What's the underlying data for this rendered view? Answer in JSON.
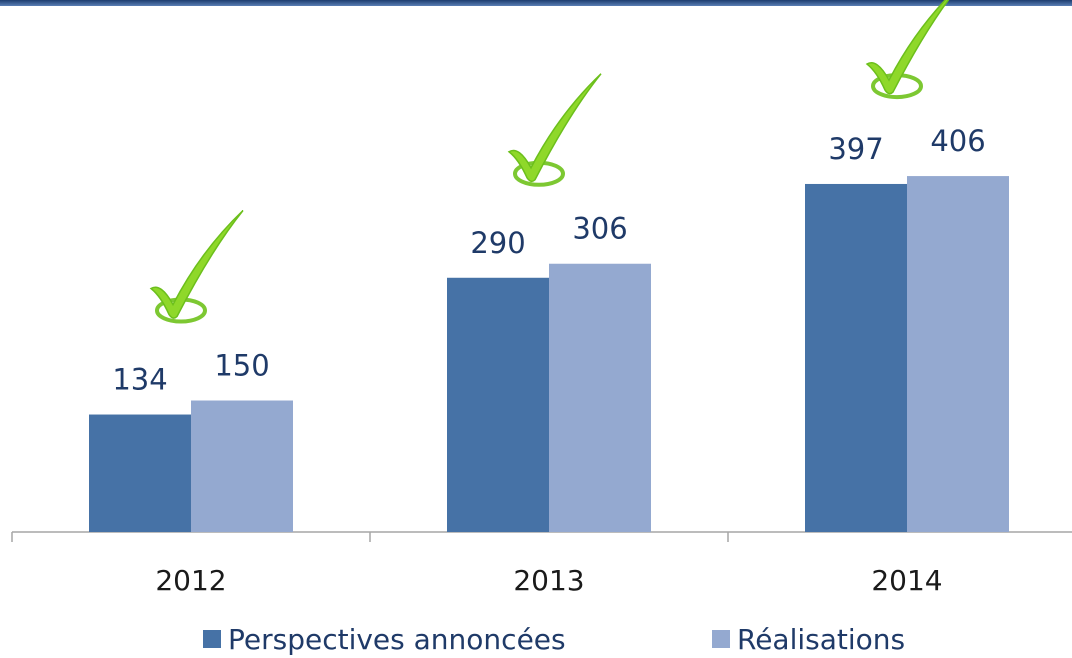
{
  "chart_data": {
    "type": "bar",
    "categories": [
      "2012",
      "2013",
      "2014"
    ],
    "series": [
      {
        "name": "Perspectives annoncées",
        "color": "#4672a6",
        "values": [
          134,
          290,
          397
        ]
      },
      {
        "name": "Réalisations",
        "color": "#94a9d0",
        "values": [
          150,
          306,
          406
        ]
      }
    ],
    "ylim": [
      0,
      600
    ],
    "legend": "bottom"
  }
}
